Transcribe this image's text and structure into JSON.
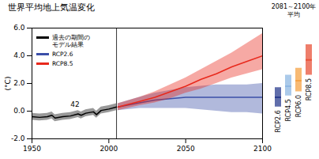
{
  "chart_data": {
    "type": "line",
    "title": "世界平均地上気温変化",
    "ylabel": "(°C)",
    "xlim": [
      1950,
      2100
    ],
    "xticks": [
      1950,
      2000,
      2050,
      2100
    ],
    "ylim": [
      -2,
      6
    ],
    "yticks": [
      {
        "value": -2,
        "label": "-2.0"
      },
      {
        "value": 0,
        "label": "0.0"
      },
      {
        "value": 2,
        "label": "2.0"
      },
      {
        "value": 4,
        "label": "4.0"
      },
      {
        "value": 6,
        "label": "6.0"
      }
    ],
    "grid": false,
    "legend": "top-left",
    "series": [
      {
        "name": "過去の期間のモデル結果",
        "color": "#000000",
        "x": [
          1950,
          1955,
          1960,
          1963,
          1965,
          1970,
          1975,
          1980,
          1982,
          1985,
          1990,
          1992,
          1995,
          2000,
          2005
        ],
        "values": [
          -0.4,
          -0.45,
          -0.4,
          -0.3,
          -0.5,
          -0.4,
          -0.35,
          -0.2,
          -0.3,
          -0.15,
          -0.05,
          -0.25,
          0.05,
          0.15,
          0.3
        ],
        "lower": [
          -0.65,
          -0.7,
          -0.65,
          -0.55,
          -0.75,
          -0.65,
          -0.6,
          -0.45,
          -0.55,
          -0.4,
          -0.3,
          -0.5,
          -0.2,
          -0.1,
          0.05
        ],
        "upper": [
          -0.15,
          -0.2,
          -0.15,
          -0.05,
          -0.25,
          -0.15,
          -0.1,
          0.05,
          -0.05,
          0.1,
          0.2,
          0.0,
          0.3,
          0.4,
          0.55
        ]
      },
      {
        "name": "RCP2.6",
        "color": "#3b4fa8",
        "x": [
          2006,
          2020,
          2030,
          2040,
          2050,
          2060,
          2070,
          2080,
          2090,
          2100
        ],
        "values": [
          0.3,
          0.6,
          0.8,
          0.9,
          1.0,
          1.0,
          1.0,
          1.0,
          1.0,
          1.0
        ],
        "lower": [
          0.05,
          0.2,
          0.2,
          0.2,
          0.2,
          0.1,
          0.0,
          -0.1,
          -0.1,
          -0.2
        ],
        "upper": [
          0.55,
          1.0,
          1.3,
          1.5,
          1.7,
          1.8,
          1.9,
          1.9,
          1.9,
          2.0
        ]
      },
      {
        "name": "RCP8.5",
        "color": "#e8291c",
        "x": [
          2006,
          2020,
          2030,
          2040,
          2050,
          2060,
          2070,
          2080,
          2090,
          2100
        ],
        "values": [
          0.3,
          0.7,
          1.0,
          1.4,
          1.8,
          2.3,
          2.7,
          3.2,
          3.6,
          4.0
        ],
        "lower": [
          0.05,
          0.4,
          0.6,
          0.9,
          1.3,
          1.6,
          2.0,
          2.4,
          2.7,
          3.0
        ],
        "upper": [
          0.55,
          1.0,
          1.4,
          1.9,
          2.4,
          3.0,
          3.6,
          4.2,
          4.9,
          5.6
        ]
      }
    ],
    "reference_lines": [
      {
        "x": 2005
      }
    ],
    "annotations": [
      {
        "text": "42",
        "x": 1978,
        "y": 0.5
      }
    ],
    "period_means": {
      "title": "2081～2100年平均",
      "categories": [
        "RCP2.6",
        "RCP4.5",
        "RCP6.0",
        "RCP8.5"
      ],
      "low": [
        0.3,
        1.1,
        1.4,
        2.6
      ],
      "high": [
        1.7,
        2.6,
        3.1,
        4.8
      ],
      "mean": [
        1.0,
        1.8,
        2.2,
        3.7
      ],
      "colors": [
        "#2b3d8f",
        "#8fb8e3",
        "#f6a345",
        "#e8533a"
      ]
    }
  }
}
